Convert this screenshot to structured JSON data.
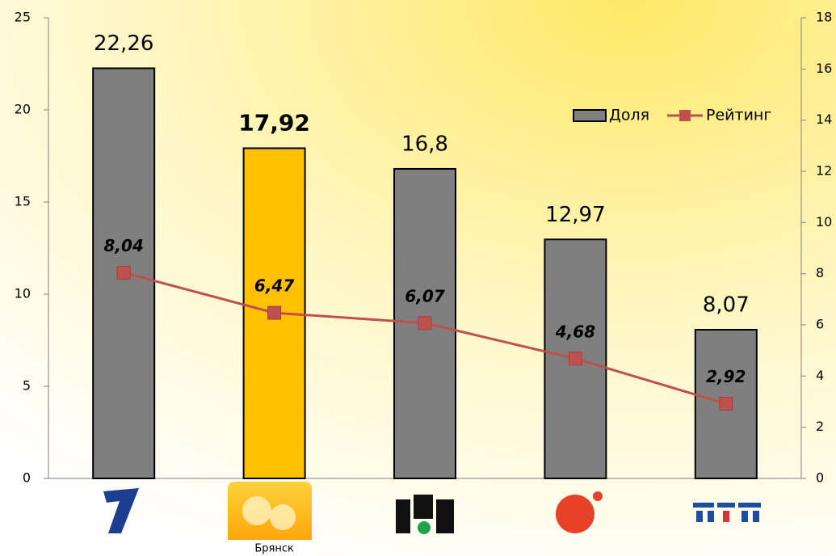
{
  "chart_data": {
    "type": "bar",
    "categories": [
      null,
      "Брянск",
      null,
      null,
      null
    ],
    "series": [
      {
        "name": "Доля",
        "type": "bar",
        "color": "#7f7f7f",
        "colors": [
          "#7f7f7f",
          "#ffc000",
          "#7f7f7f",
          "#7f7f7f",
          "#7f7f7f"
        ],
        "values": [
          22.26,
          17.92,
          16.8,
          12.97,
          8.07
        ],
        "value_labels": [
          "22,26",
          "17,92",
          "16,8",
          "12,97",
          "8,07"
        ]
      },
      {
        "name": "Рейтинг",
        "type": "line",
        "axis": "y2",
        "color": "#c0504d",
        "values": [
          8.04,
          6.47,
          6.07,
          4.68,
          2.92
        ],
        "value_labels": [
          "8,04",
          "6,47",
          "6,07",
          "4,68",
          "2,92"
        ]
      }
    ],
    "highlight": 1,
    "ylim": [
      0,
      25
    ],
    "yticks": [
      0,
      5,
      10,
      15,
      20,
      25
    ],
    "y2lim": [
      0,
      18
    ],
    "y2ticks": [
      0,
      2,
      4,
      6,
      8,
      10,
      12,
      14,
      16,
      18
    ],
    "legend": "top-right"
  }
}
